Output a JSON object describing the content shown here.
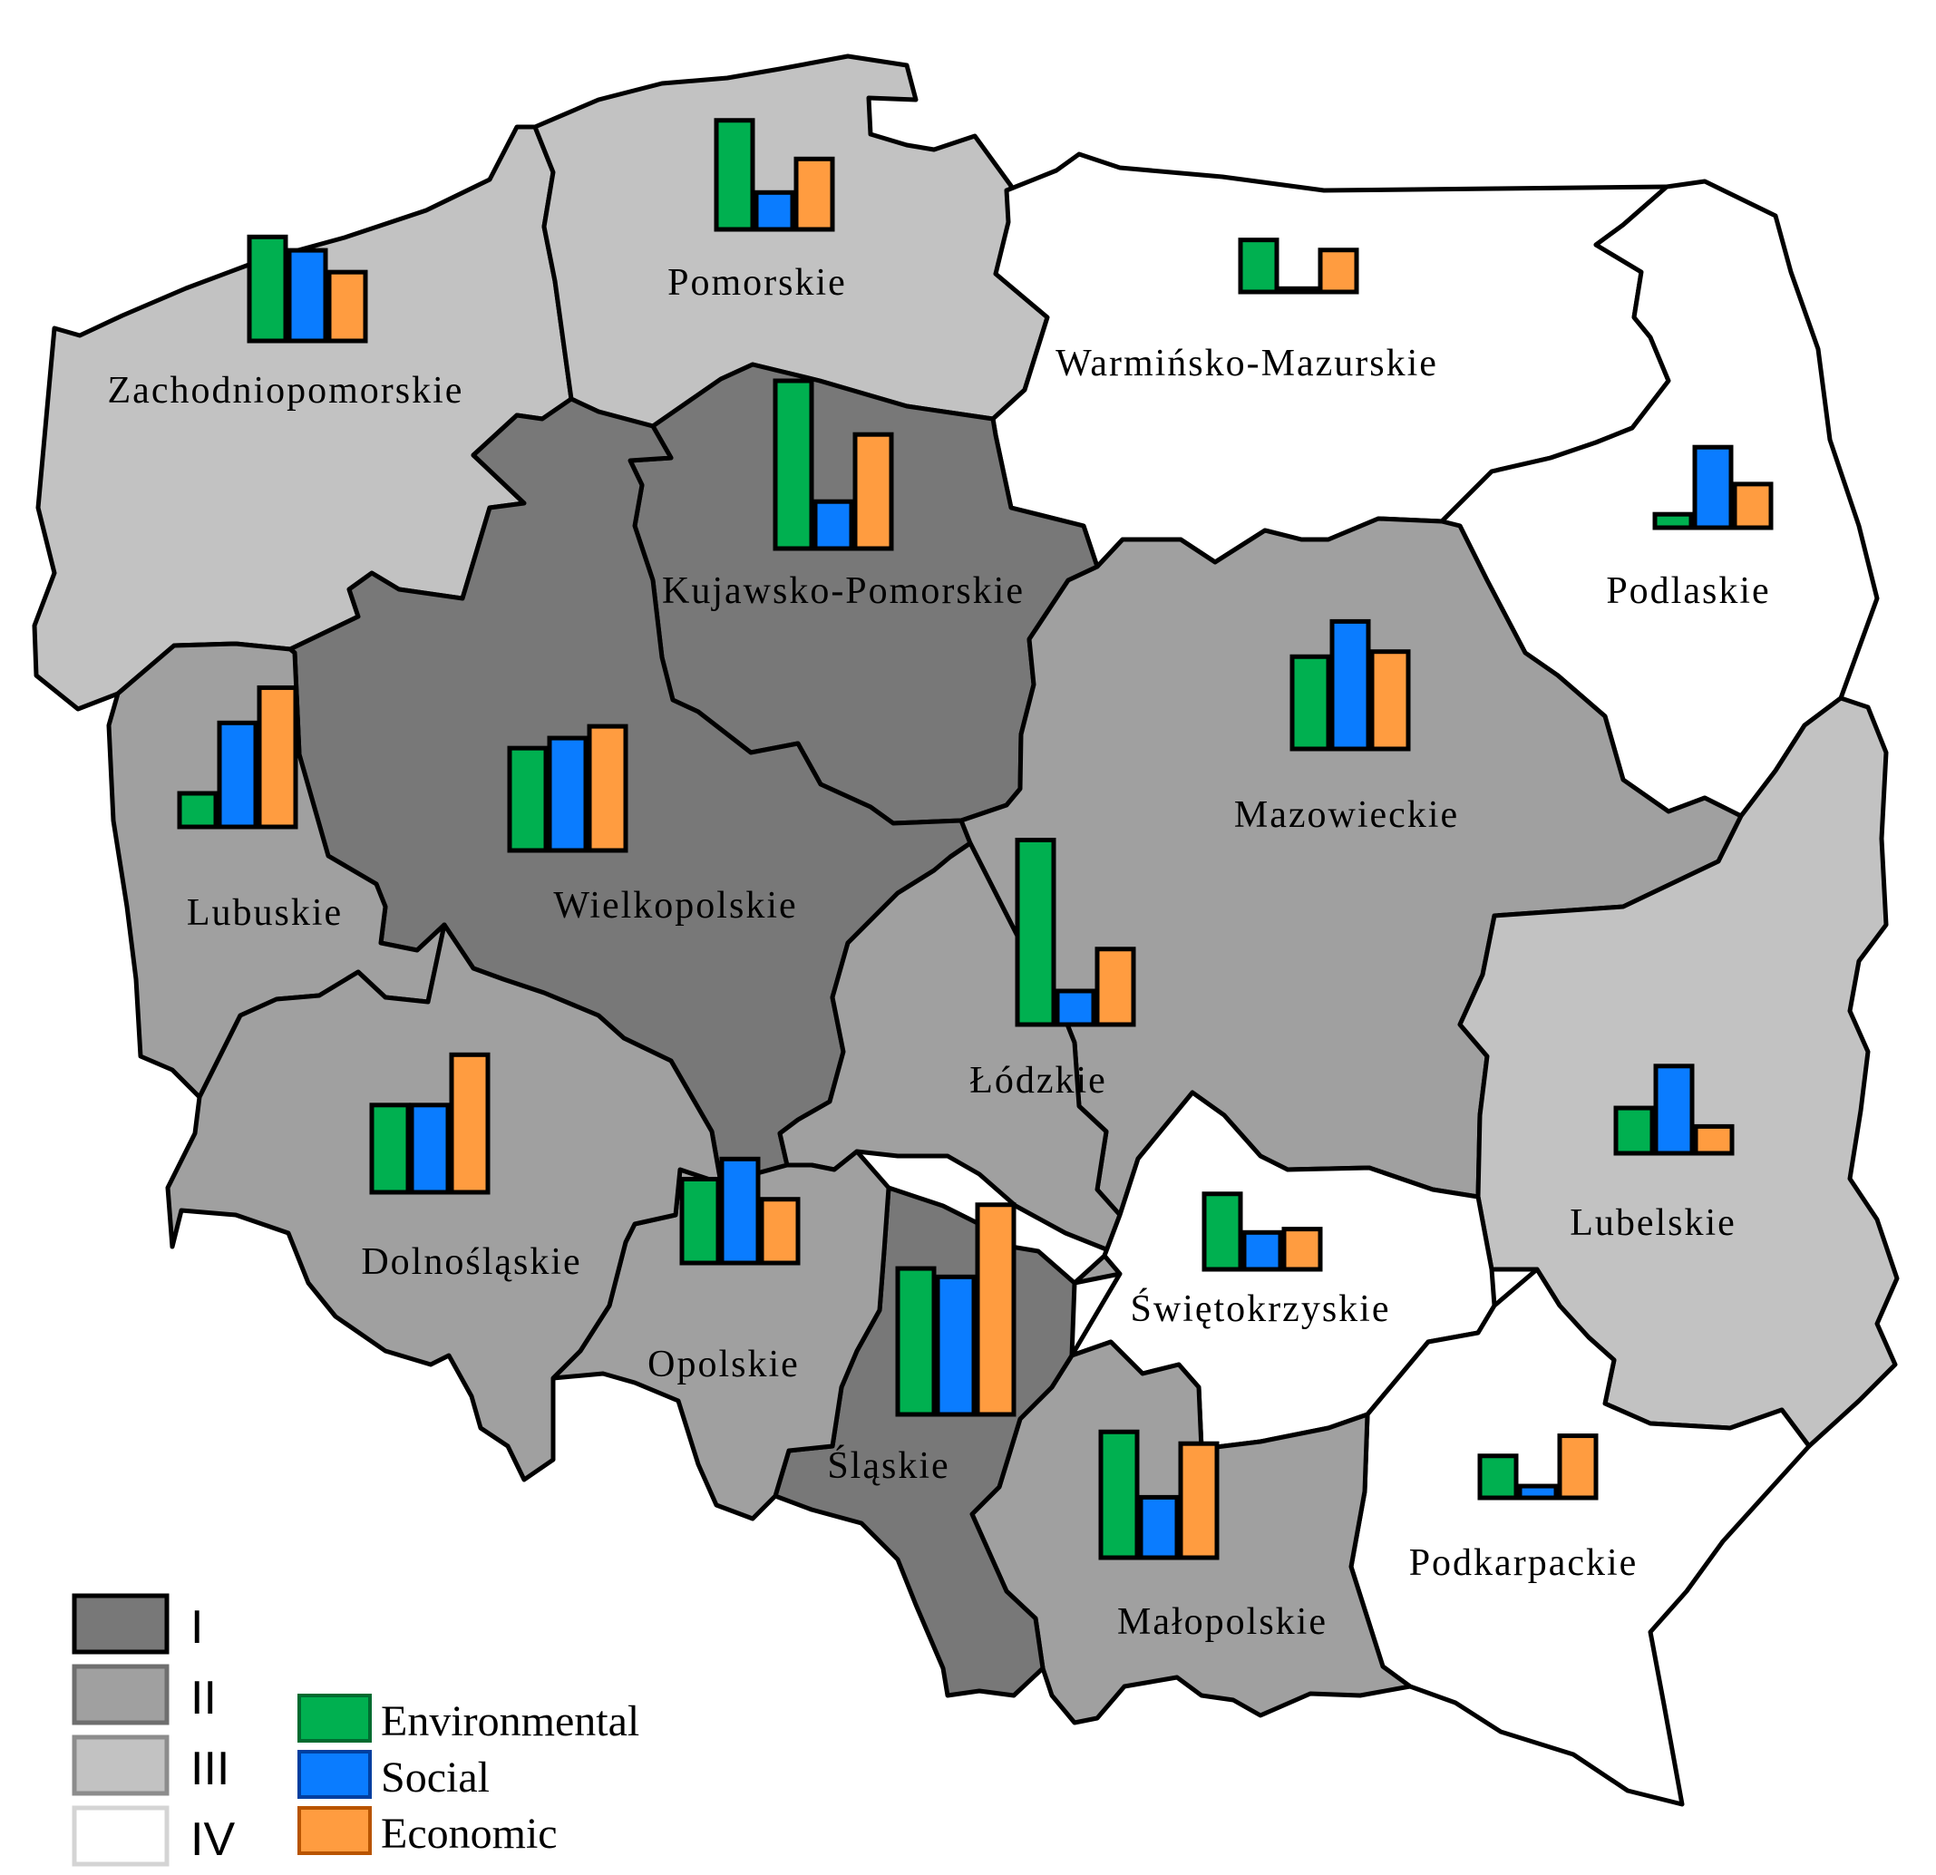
{
  "colors": {
    "class_I": "#787878",
    "class_II": "#a0a0a0",
    "class_III": "#c2c2c2",
    "class_IV": "#ffffff",
    "environmental": "#00b050",
    "social": "#0a7cff",
    "economic": "#ff9c40"
  },
  "legend": {
    "classes": [
      {
        "label": "I",
        "class": "I"
      },
      {
        "label": "II",
        "class": "II"
      },
      {
        "label": "III",
        "class": "III"
      },
      {
        "label": "IV",
        "class": "IV"
      }
    ],
    "series": [
      {
        "name": "Environmental",
        "color": "#00b050"
      },
      {
        "name": "Social",
        "color": "#0a7cff"
      },
      {
        "name": "Economic",
        "color": "#ff9c40"
      }
    ]
  },
  "chart_data": {
    "type": "bar",
    "series_names": [
      "Environmental",
      "Social",
      "Economic"
    ],
    "regions": [
      {
        "id": "zachodniopomorskie",
        "name": "Zachodniopomorskie",
        "class": "III",
        "values": [
          0.62,
          0.54,
          0.41
        ]
      },
      {
        "id": "pomorskie",
        "name": "Pomorskie",
        "class": "III",
        "values": [
          0.65,
          0.22,
          0.42
        ]
      },
      {
        "id": "warminsko-mazurskie",
        "name": "Warmińsko-Mazurskie",
        "class": "IV",
        "values": [
          0.31,
          0.02,
          0.25
        ]
      },
      {
        "id": "kujawsko-pomorskie",
        "name": "Kujawsko-Pomorskie",
        "class": "I",
        "values": [
          1.0,
          0.28,
          0.68
        ]
      },
      {
        "id": "podlaskie",
        "name": "Podlaskie",
        "class": "IV",
        "values": [
          0.08,
          0.48,
          0.26
        ]
      },
      {
        "id": "lubuskie",
        "name": "Lubuskie",
        "class": "II",
        "values": [
          0.2,
          0.62,
          0.83
        ]
      },
      {
        "id": "wielkopolskie",
        "name": "Wielkopolskie",
        "class": "I",
        "values": [
          0.61,
          0.67,
          0.74
        ]
      },
      {
        "id": "mazowieckie",
        "name": "Mazowieckie",
        "class": "II",
        "values": [
          0.55,
          0.76,
          0.58
        ]
      },
      {
        "id": "lodzkie",
        "name": "Łódzkie",
        "class": "II",
        "values": [
          1.1,
          0.2,
          0.45
        ]
      },
      {
        "id": "dolnoslaskie",
        "name": "Dolnośląskie",
        "class": "II",
        "values": [
          0.52,
          0.52,
          0.82
        ]
      },
      {
        "id": "opolskie",
        "name": "Opolskie",
        "class": "II",
        "values": [
          0.5,
          0.62,
          0.38
        ]
      },
      {
        "id": "slaskie",
        "name": "Śląskie",
        "class": "I",
        "values": [
          0.87,
          0.82,
          1.25
        ]
      },
      {
        "id": "swietokrzyskie",
        "name": "Świętokrzyskie",
        "class": "IV",
        "values": [
          0.45,
          0.22,
          0.24
        ]
      },
      {
        "id": "lubelskie",
        "name": "Lubelskie",
        "class": "III",
        "values": [
          0.27,
          0.52,
          0.16
        ]
      },
      {
        "id": "malopolskie",
        "name": "Małopolskie",
        "class": "II",
        "values": [
          0.75,
          0.36,
          0.68
        ]
      },
      {
        "id": "podkarpackie",
        "name": "Podkarpackie",
        "class": "IV",
        "values": [
          0.25,
          0.07,
          0.37
        ]
      }
    ]
  }
}
